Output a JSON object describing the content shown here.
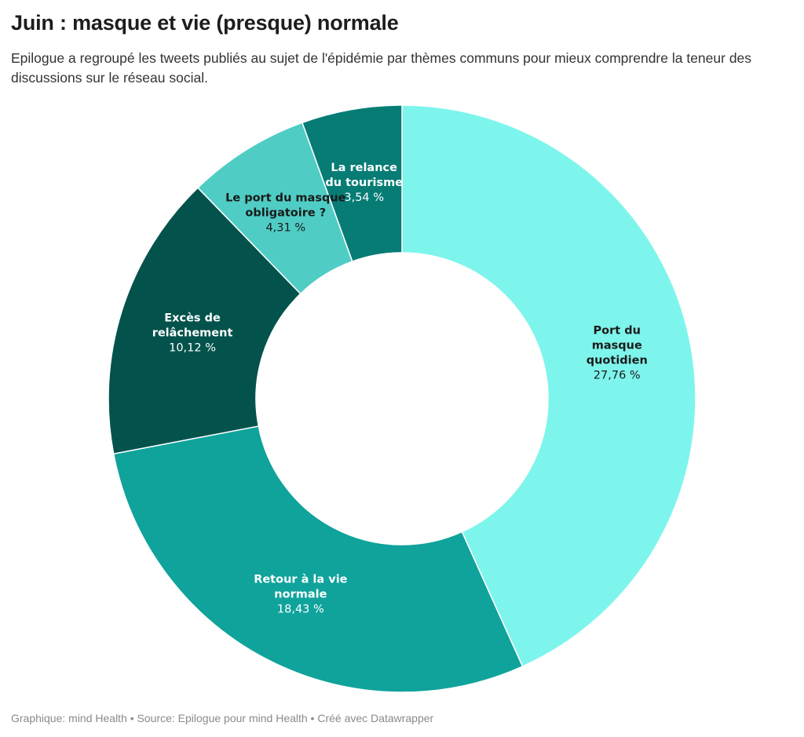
{
  "title": "Juin : masque et vie (presque) normale",
  "subtitle": "Epilogue a regroupé les tweets publiés au sujet de l'épidémie par thèmes communs pour mieux comprendre la teneur des discussions sur le réseau social.",
  "footer": "Graphique: mind Health • Source: Epilogue pour mind Health • Créé avec Datawrapper",
  "chart_data": {
    "type": "pie",
    "variant": "donut",
    "slices": [
      {
        "label_lines": [
          "Port du",
          "masque",
          "quotidien"
        ],
        "value": 27.76,
        "value_label": "27,76 %",
        "color": "#7ef5ec",
        "text_color": "#1a1a1a"
      },
      {
        "label_lines": [
          "Retour à la vie",
          "normale"
        ],
        "value": 18.43,
        "value_label": "18,43 %",
        "color": "#0fa39b",
        "text_color": "#ffffff"
      },
      {
        "label_lines": [
          "Excès de",
          "relâchement"
        ],
        "value": 10.12,
        "value_label": "10,12 %",
        "color": "#03534c",
        "text_color": "#ffffff"
      },
      {
        "label_lines": [
          "Le port du masque",
          "obligatoire ?"
        ],
        "value": 4.31,
        "value_label": "4,31 %",
        "color": "#4fcdc5",
        "text_color": "#1a1a1a"
      },
      {
        "label_lines": [
          "La relance",
          "du tourisme"
        ],
        "value": 3.54,
        "value_label": "3,54 %",
        "color": "#067c75",
        "text_color": "#ffffff"
      }
    ]
  }
}
